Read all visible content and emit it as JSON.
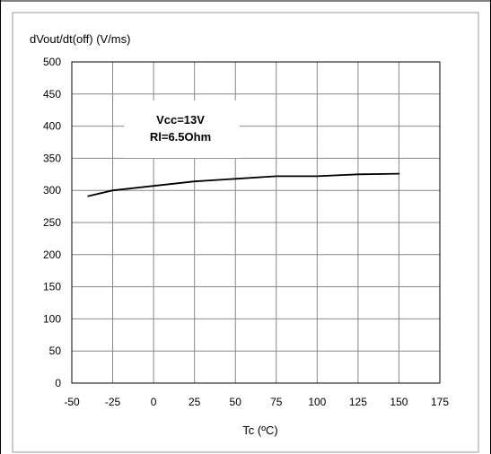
{
  "chart_data": {
    "type": "line",
    "ylabel": "dVout/dt(off) (V/ms)",
    "xlabel": "Tc (ºC)",
    "xlim": [
      -50,
      175
    ],
    "ylim": [
      0,
      500
    ],
    "xticks": [
      -50,
      -25,
      0,
      25,
      50,
      75,
      100,
      125,
      150,
      175
    ],
    "yticks": [
      0,
      50,
      100,
      150,
      200,
      250,
      300,
      350,
      400,
      450,
      500
    ],
    "grid": true,
    "annotation": [
      "Vcc=13V",
      "Rl=6.5Ohm"
    ],
    "series": [
      {
        "x": [
          -40,
          -25,
          0,
          25,
          50,
          75,
          100,
          125,
          150
        ],
        "y": [
          291,
          300,
          307,
          314,
          318,
          322,
          322,
          325,
          326
        ]
      }
    ]
  }
}
